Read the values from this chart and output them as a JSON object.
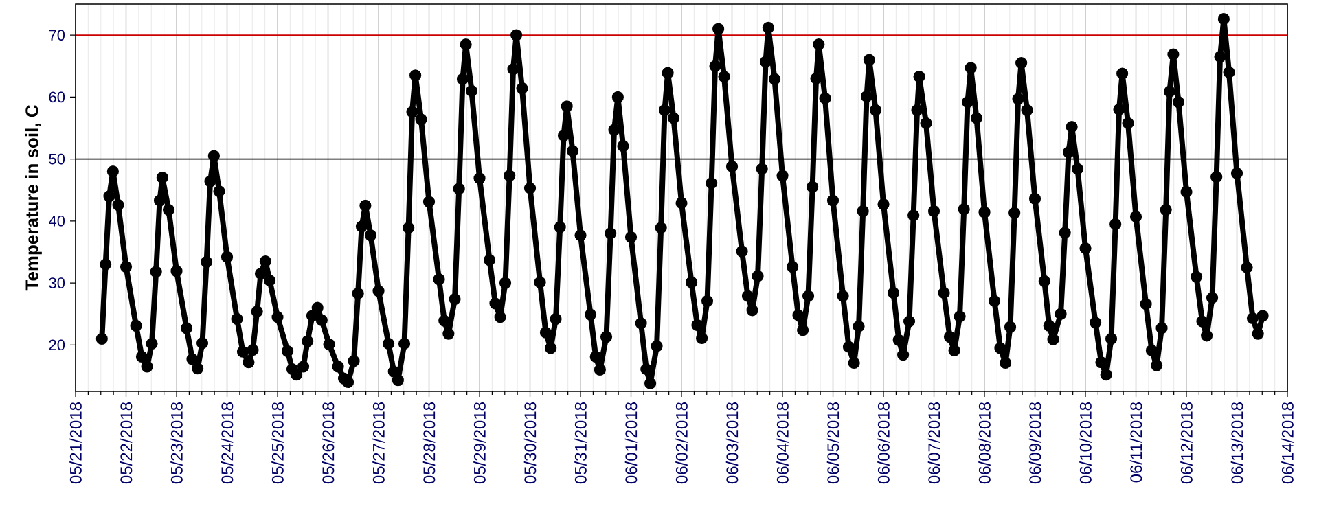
{
  "chart_data": {
    "type": "line",
    "ylabel": "Temperature in soil, C",
    "xlim": [
      "2018-05-21",
      "2018-06-14"
    ],
    "ylim": [
      12.5,
      75
    ],
    "xticks": [
      {
        "value": "2018-05-21",
        "label": "05/21/2018"
      },
      {
        "value": "2018-05-22",
        "label": "05/22/2018"
      },
      {
        "value": "2018-05-23",
        "label": "05/23/2018"
      },
      {
        "value": "2018-05-24",
        "label": "05/24/2018"
      },
      {
        "value": "2018-05-25",
        "label": "05/25/2018"
      },
      {
        "value": "2018-05-26",
        "label": "05/26/2018"
      },
      {
        "value": "2018-05-27",
        "label": "05/27/2018"
      },
      {
        "value": "2018-05-28",
        "label": "05/28/2018"
      },
      {
        "value": "2018-05-29",
        "label": "05/29/2018"
      },
      {
        "value": "2018-05-30",
        "label": "05/30/2018"
      },
      {
        "value": "2018-05-31",
        "label": "05/31/2018"
      },
      {
        "value": "2018-06-01",
        "label": "06/01/2018"
      },
      {
        "value": "2018-06-02",
        "label": "06/02/2018"
      },
      {
        "value": "2018-06-03",
        "label": "06/03/2018"
      },
      {
        "value": "2018-06-04",
        "label": "06/04/2018"
      },
      {
        "value": "2018-06-05",
        "label": "06/05/2018"
      },
      {
        "value": "2018-06-06",
        "label": "06/06/2018"
      },
      {
        "value": "2018-06-07",
        "label": "06/07/2018"
      },
      {
        "value": "2018-06-08",
        "label": "06/08/2018"
      },
      {
        "value": "2018-06-09",
        "label": "06/09/2018"
      },
      {
        "value": "2018-06-10",
        "label": "06/10/2018"
      },
      {
        "value": "2018-06-11",
        "label": "06/11/2018"
      },
      {
        "value": "2018-06-12",
        "label": "06/12/2018"
      },
      {
        "value": "2018-06-13",
        "label": "06/13/2018"
      },
      {
        "value": "2018-06-14",
        "label": "06/14/2018"
      }
    ],
    "yticks": [
      20,
      30,
      40,
      50,
      60,
      70
    ],
    "grid": "x",
    "marker": "circle",
    "line_style": "solid",
    "ref_lines": [
      {
        "axis": "y",
        "value": 70,
        "color": "#cc0000"
      },
      {
        "axis": "y",
        "value": 50,
        "color": "#000000"
      }
    ],
    "series": [
      {
        "color": "#000000",
        "x": [
          "2018-05-21T12:30",
          "2018-05-21T14:15",
          "2018-05-21T16:00",
          "2018-05-21T17:45",
          "2018-05-21T20:15",
          "2018-05-22T00:00",
          "2018-05-22T04:45",
          "2018-05-22T07:30",
          "2018-05-22T10:00",
          "2018-05-22T12:15",
          "2018-05-22T14:15",
          "2018-05-22T16:00",
          "2018-05-22T17:15",
          "2018-05-22T20:15",
          "2018-05-23T00:00",
          "2018-05-23T04:45",
          "2018-05-23T07:30",
          "2018-05-23T10:00",
          "2018-05-23T12:15",
          "2018-05-23T14:15",
          "2018-05-23T16:00",
          "2018-05-23T17:45",
          "2018-05-23T20:15",
          "2018-05-24T00:00",
          "2018-05-24T04:45",
          "2018-05-24T07:30",
          "2018-05-24T10:15",
          "2018-05-24T12:15",
          "2018-05-24T14:15",
          "2018-05-24T16:00",
          "2018-05-24T18:15",
          "2018-05-24T20:15",
          "2018-05-25T00:00",
          "2018-05-25T04:45",
          "2018-05-25T07:00",
          "2018-05-25T09:00",
          "2018-05-25T12:15",
          "2018-05-25T14:15",
          "2018-05-25T16:30",
          "2018-05-25T19:00",
          "2018-05-25T21:00",
          "2018-05-26T00:30",
          "2018-05-26T04:45",
          "2018-05-26T07:30",
          "2018-05-26T09:30",
          "2018-05-26T12:15",
          "2018-05-26T14:15",
          "2018-05-26T16:00",
          "2018-05-26T17:45",
          "2018-05-26T20:15",
          "2018-05-27T00:00",
          "2018-05-27T04:45",
          "2018-05-27T07:15",
          "2018-05-27T09:15",
          "2018-05-27T12:15",
          "2018-05-27T14:15",
          "2018-05-27T16:00",
          "2018-05-27T17:30",
          "2018-05-27T20:15",
          "2018-05-28T00:00",
          "2018-05-28T04:45",
          "2018-05-28T07:15",
          "2018-05-28T09:15",
          "2018-05-28T12:15",
          "2018-05-28T14:15",
          "2018-05-28T16:00",
          "2018-05-28T17:30",
          "2018-05-28T20:15",
          "2018-05-29T00:00",
          "2018-05-29T04:45",
          "2018-05-29T07:30",
          "2018-05-29T09:50",
          "2018-05-29T12:15",
          "2018-05-29T14:15",
          "2018-05-29T16:00",
          "2018-05-29T17:30",
          "2018-05-29T20:15",
          "2018-05-30T00:00",
          "2018-05-30T04:45",
          "2018-05-30T07:30",
          "2018-05-30T09:50",
          "2018-05-30T12:15",
          "2018-05-30T14:15",
          "2018-05-30T16:00",
          "2018-05-30T17:30",
          "2018-05-30T20:15",
          "2018-05-31T00:00",
          "2018-05-31T04:45",
          "2018-05-31T07:15",
          "2018-05-31T09:15",
          "2018-05-31T12:15",
          "2018-05-31T14:15",
          "2018-05-31T16:00",
          "2018-05-31T17:45",
          "2018-05-31T20:15",
          "2018-06-01T00:00",
          "2018-06-01T04:45",
          "2018-06-01T07:15",
          "2018-06-01T09:10",
          "2018-06-01T12:15",
          "2018-06-01T14:15",
          "2018-06-01T16:00",
          "2018-06-01T17:30",
          "2018-06-01T20:15",
          "2018-06-02T00:00",
          "2018-06-02T04:45",
          "2018-06-02T07:30",
          "2018-06-02T09:40",
          "2018-06-02T12:15",
          "2018-06-02T14:15",
          "2018-06-02T16:00",
          "2018-06-02T17:30",
          "2018-06-02T20:15",
          "2018-06-03T00:00",
          "2018-06-03T04:45",
          "2018-06-03T07:30",
          "2018-06-03T09:40",
          "2018-06-03T12:15",
          "2018-06-03T14:15",
          "2018-06-03T16:00",
          "2018-06-03T17:15",
          "2018-06-03T20:15",
          "2018-06-04T00:00",
          "2018-06-04T04:45",
          "2018-06-04T07:30",
          "2018-06-04T09:40",
          "2018-06-04T12:15",
          "2018-06-04T14:15",
          "2018-06-04T16:00",
          "2018-06-04T17:15",
          "2018-06-04T20:15",
          "2018-06-05T00:00",
          "2018-06-05T04:45",
          "2018-06-05T07:30",
          "2018-06-05T10:00",
          "2018-06-05T12:15",
          "2018-06-05T14:15",
          "2018-06-05T16:00",
          "2018-06-05T17:15",
          "2018-06-05T20:15",
          "2018-06-06T00:00",
          "2018-06-06T04:45",
          "2018-06-06T07:15",
          "2018-06-06T09:20",
          "2018-06-06T12:15",
          "2018-06-06T14:15",
          "2018-06-06T16:00",
          "2018-06-06T17:00",
          "2018-06-06T20:15",
          "2018-06-07T00:00",
          "2018-06-07T04:45",
          "2018-06-07T07:30",
          "2018-06-07T09:40",
          "2018-06-07T12:15",
          "2018-06-07T14:15",
          "2018-06-07T16:00",
          "2018-06-07T17:30",
          "2018-06-07T20:15",
          "2018-06-08T00:00",
          "2018-06-08T04:45",
          "2018-06-08T07:30",
          "2018-06-08T10:00",
          "2018-06-08T12:15",
          "2018-06-08T14:15",
          "2018-06-08T16:00",
          "2018-06-08T17:30",
          "2018-06-08T20:15",
          "2018-06-09T00:00",
          "2018-06-09T04:30",
          "2018-06-09T06:45",
          "2018-06-09T08:40",
          "2018-06-09T12:15",
          "2018-06-09T14:15",
          "2018-06-09T16:00",
          "2018-06-09T17:30",
          "2018-06-09T20:15",
          "2018-06-10T00:00",
          "2018-06-10T04:45",
          "2018-06-10T07:30",
          "2018-06-10T09:50",
          "2018-06-10T12:15",
          "2018-06-10T14:15",
          "2018-06-10T16:00",
          "2018-06-10T17:30",
          "2018-06-10T20:15",
          "2018-06-11T00:00",
          "2018-06-11T04:45",
          "2018-06-11T07:30",
          "2018-06-11T09:50",
          "2018-06-11T12:15",
          "2018-06-11T14:15",
          "2018-06-11T16:00",
          "2018-06-11T17:45",
          "2018-06-11T20:15",
          "2018-06-12T00:00",
          "2018-06-12T04:45",
          "2018-06-12T07:30",
          "2018-06-12T09:40",
          "2018-06-12T12:15",
          "2018-06-12T14:15",
          "2018-06-12T16:00",
          "2018-06-12T17:45",
          "2018-06-12T20:15",
          "2018-06-13T00:00",
          "2018-06-13T04:45",
          "2018-06-13T07:30",
          "2018-06-13T10:00",
          "2018-06-13T12:15"
        ],
        "values": [
          21.0,
          33.0,
          44.0,
          48.0,
          42.6,
          32.6,
          23.1,
          18.1,
          16.5,
          20.2,
          31.8,
          43.3,
          47.0,
          41.8,
          31.9,
          22.7,
          17.7,
          16.2,
          20.3,
          33.4,
          46.4,
          50.5,
          44.8,
          34.2,
          24.2,
          18.9,
          17.2,
          19.2,
          25.4,
          31.5,
          33.5,
          30.4,
          24.5,
          19.0,
          16.1,
          15.2,
          16.5,
          20.6,
          24.7,
          26.0,
          24.0,
          20.1,
          16.5,
          14.6,
          14.0,
          17.4,
          28.3,
          39.1,
          42.5,
          37.7,
          28.7,
          20.2,
          15.7,
          14.3,
          20.2,
          38.9,
          57.6,
          63.5,
          56.4,
          43.1,
          30.6,
          23.9,
          21.8,
          27.4,
          45.2,
          62.9,
          68.5,
          61.0,
          46.9,
          33.7,
          26.7,
          24.5,
          30.0,
          47.3,
          64.5,
          70.0,
          61.4,
          45.3,
          30.1,
          22.0,
          19.5,
          24.2,
          39.0,
          53.8,
          58.5,
          51.3,
          37.7,
          24.9,
          18.1,
          16.0,
          21.3,
          38.0,
          54.7,
          60.0,
          52.1,
          37.4,
          23.5,
          16.1,
          13.8,
          19.8,
          38.9,
          57.9,
          63.9,
          56.6,
          42.9,
          30.1,
          23.2,
          21.1,
          27.1,
          46.1,
          65.0,
          71.0,
          63.3,
          48.8,
          35.1,
          27.9,
          25.6,
          31.1,
          48.4,
          65.7,
          71.2,
          62.9,
          47.3,
          32.6,
          24.8,
          22.4,
          27.9,
          45.5,
          63.0,
          68.5,
          59.8,
          43.3,
          27.9,
          19.7,
          17.1,
          23.0,
          41.6,
          60.1,
          66.0,
          57.9,
          42.7,
          28.4,
          20.8,
          18.4,
          23.8,
          40.9,
          57.9,
          63.3,
          55.8,
          41.6,
          28.4,
          21.3,
          19.1,
          24.6,
          41.9,
          59.2,
          64.7,
          56.6,
          41.4,
          27.1,
          19.5,
          17.1,
          22.9,
          41.3,
          59.7,
          65.5,
          57.9,
          43.6,
          30.3,
          23.1,
          20.9,
          25.0,
          38.1,
          51.1,
          55.2,
          48.4,
          35.6,
          23.6,
          17.2,
          15.2,
          21.0,
          39.5,
          58.0,
          63.8,
          55.8,
          40.7,
          26.6,
          19.1,
          16.7,
          22.7,
          41.8,
          60.9,
          66.9,
          59.2,
          44.7,
          31.0,
          23.8,
          21.5,
          27.6,
          47.1,
          66.5,
          72.6,
          64.0,
          47.7,
          32.5,
          24.3,
          21.8,
          24.7
        ]
      }
    ]
  }
}
